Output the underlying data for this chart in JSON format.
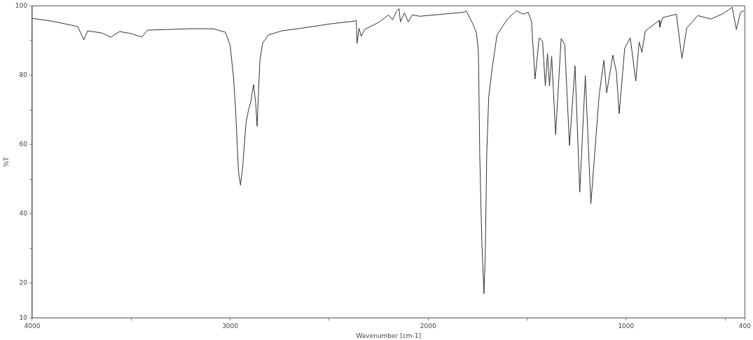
{
  "chart_data": {
    "type": "line",
    "xlabel": "Wavenumber [cm-1]",
    "ylabel": "%T",
    "xlim": [
      4000,
      400
    ],
    "xticks": [
      4000,
      {
        "value": 3500,
        "label": null
      },
      3000,
      {
        "value": 2500,
        "label": null
      },
      2000,
      {
        "value": 1500,
        "label": null
      },
      1000,
      {
        "value": 500,
        "label": null
      },
      400
    ],
    "ylim": [
      10,
      100
    ],
    "yticks": [
      10,
      20,
      {
        "value": 30,
        "label": null
      },
      40,
      {
        "value": 50,
        "label": null
      },
      60,
      {
        "value": 70,
        "label": null
      },
      80,
      {
        "value": 90,
        "label": null
      },
      100
    ],
    "grid": false,
    "legend": false,
    "marker": "none",
    "line_style": "solid",
    "x": [
      4000,
      3900,
      3800,
      3770,
      3739,
      3720,
      3650,
      3603,
      3558,
      3500,
      3446,
      3418,
      3200,
      3087,
      3024,
      3000,
      2983,
      2972,
      2958,
      2948,
      2937,
      2920,
      2906,
      2896,
      2882,
      2871,
      2864,
      2850,
      2836,
      2808,
      2739,
      2634,
      2495,
      2373,
      2363,
      2359,
      2349,
      2338,
      2321,
      2251,
      2200,
      2180,
      2160,
      2147,
      2140,
      2120,
      2100,
      2080,
      2042,
      1815,
      1809,
      1774,
      1756,
      1746,
      1739,
      1729,
      1718,
      1711,
      1704,
      1694,
      1676,
      1652,
      1600,
      1554,
      1519,
      1495,
      1478,
      1460,
      1439,
      1422,
      1408,
      1397,
      1387,
      1376,
      1356,
      1328,
      1310,
      1286,
      1258,
      1234,
      1206,
      1178,
      1136,
      1112,
      1098,
      1067,
      1049,
      1035,
      1007,
      979,
      951,
      934,
      920,
      903,
      833,
      830,
      816,
      746,
      718,
      694,
      638,
      572,
      509,
      464,
      443,
      422,
      404
    ],
    "series": [
      {
        "color": "#333333",
        "values": [
          96.4,
          95.6,
          94.4,
          94,
          90.2,
          92.8,
          92.2,
          91,
          92.6,
          92,
          91,
          93,
          93.4,
          93.4,
          92.4,
          88.6,
          79.3,
          69.3,
          52.3,
          48.3,
          53.3,
          66.3,
          70.3,
          72.3,
          77.3,
          72,
          65.3,
          84.2,
          89.2,
          91.6,
          92.8,
          93.6,
          94.8,
          95.6,
          95.8,
          89.2,
          93.6,
          91.2,
          93.2,
          95.2,
          97.4,
          96,
          98.4,
          99.2,
          95.4,
          98,
          95.4,
          97.4,
          97,
          98.2,
          98.6,
          94.8,
          92.2,
          86.8,
          56.3,
          32.4,
          17,
          29,
          56.9,
          73.7,
          82.3,
          91.6,
          96.2,
          98.6,
          97.6,
          98.2,
          95.6,
          78.9,
          90.8,
          89.8,
          76.9,
          86.2,
          76.9,
          85.4,
          62.9,
          90.6,
          88.8,
          59.7,
          82.7,
          46.3,
          79.9,
          42.9,
          74.3,
          84.3,
          74.9,
          85.8,
          80.9,
          68.9,
          87.8,
          90.8,
          78.3,
          89.6,
          86.6,
          92.8,
          95.8,
          93.8,
          96.6,
          97.6,
          84.8,
          93.6,
          97.2,
          96.2,
          97.8,
          99.6,
          93.2,
          98.2,
          98.6
        ]
      }
    ]
  }
}
